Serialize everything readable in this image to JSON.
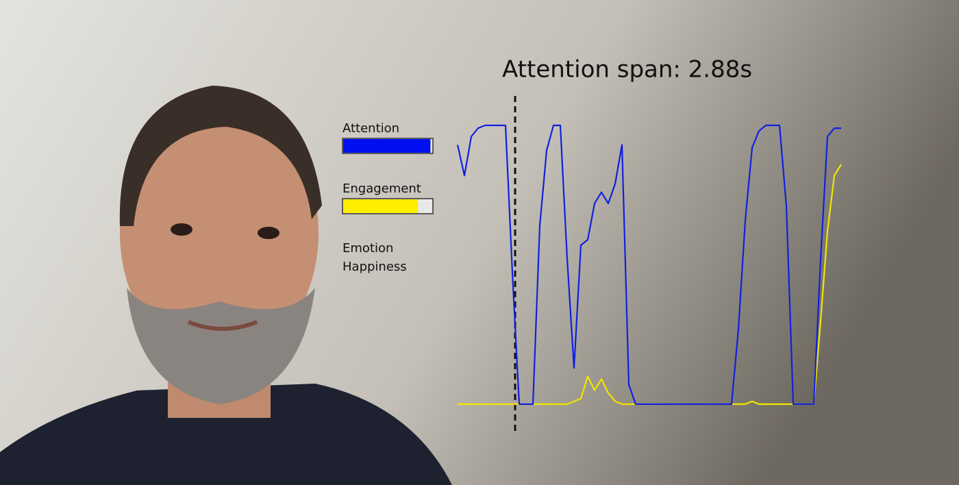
{
  "chart_data": {
    "type": "line",
    "title": "Attention span: 2.88s",
    "ylim": [
      0,
      100
    ],
    "series": [
      {
        "name": "Attention",
        "color": "#1020e0",
        "values": [
          93,
          82,
          96,
          99,
          100,
          100,
          100,
          100,
          47,
          0,
          0,
          0,
          64,
          91,
          100,
          100,
          52,
          13,
          57,
          59,
          72,
          76,
          72,
          79,
          93,
          7,
          0,
          0,
          0,
          0,
          0,
          0,
          0,
          0,
          0,
          0,
          0,
          0,
          0,
          0,
          0,
          27,
          66,
          92,
          98,
          100,
          100,
          100,
          71,
          0,
          0,
          0,
          0,
          52,
          96,
          99,
          99
        ]
      },
      {
        "name": "Engagement",
        "color": "#f2e600",
        "values": [
          0,
          0,
          0,
          0,
          0,
          0,
          0,
          0,
          0,
          0,
          0,
          0,
          0,
          0,
          0,
          0,
          0,
          1,
          2,
          10,
          5,
          9,
          4,
          1,
          0,
          0,
          0,
          0,
          0,
          0,
          0,
          0,
          0,
          0,
          0,
          0,
          0,
          0,
          0,
          0,
          0,
          0,
          0,
          1,
          0,
          0,
          0,
          0,
          0,
          0,
          0,
          0,
          0,
          30,
          62,
          82,
          86
        ]
      }
    ]
  },
  "meters": [
    {
      "label": "Attention",
      "value": 98,
      "color": "#0010f0"
    },
    {
      "label": "Engagement",
      "value": 84,
      "color": "#ffee00"
    }
  ],
  "emotion": {
    "label": "Emotion",
    "value": "Happiness"
  }
}
